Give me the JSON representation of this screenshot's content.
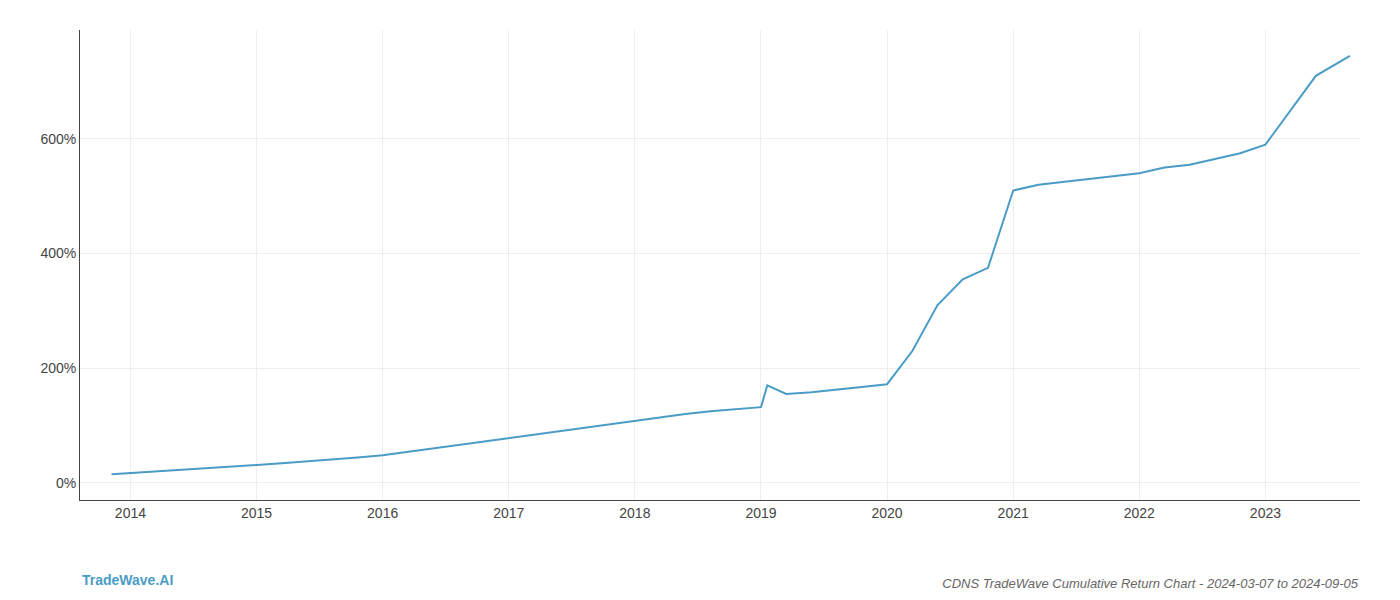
{
  "chart_data": {
    "type": "line",
    "title": "CDNS TradeWave Cumulative Return Chart - 2024-03-07 to 2024-09-05",
    "annotations": [
      "TradeWave.AI"
    ],
    "x": [
      2013.85,
      2014.0,
      2014.2,
      2014.4,
      2014.6,
      2014.8,
      2015.0,
      2015.2,
      2015.4,
      2015.6,
      2015.8,
      2016.0,
      2016.2,
      2016.4,
      2016.6,
      2016.8,
      2017.0,
      2017.2,
      2017.4,
      2017.6,
      2017.8,
      2018.0,
      2018.2,
      2018.4,
      2018.6,
      2018.8,
      2019.0,
      2019.05,
      2019.2,
      2019.4,
      2019.6,
      2019.8,
      2020.0,
      2020.2,
      2020.4,
      2020.6,
      2020.8,
      2021.0,
      2021.2,
      2021.4,
      2021.6,
      2021.8,
      2022.0,
      2022.2,
      2022.4,
      2022.6,
      2022.8,
      2023.0,
      2023.2,
      2023.4,
      2023.67
    ],
    "values": [
      15,
      17,
      19,
      22,
      25,
      28,
      31,
      34,
      37,
      40,
      44,
      48,
      54,
      60,
      66,
      72,
      78,
      85,
      90,
      96,
      102,
      108,
      115,
      120,
      125,
      128,
      132,
      170,
      155,
      158,
      162,
      167,
      172,
      230,
      310,
      355,
      375,
      510,
      520,
      525,
      530,
      535,
      540,
      550,
      555,
      565,
      575,
      590,
      650,
      710,
      745
    ],
    "color": "#4a9cc7",
    "xlim": [
      2013.6,
      2023.75
    ],
    "xticks": [
      2014,
      2015,
      2016,
      2017,
      2018,
      2019,
      2020,
      2021,
      2022,
      2023
    ],
    "ylim": [
      -30,
      790
    ],
    "yticks": [
      {
        "value": 0,
        "label": "0%"
      },
      {
        "value": 200,
        "label": "200%"
      },
      {
        "value": 400,
        "label": "400%"
      },
      {
        "value": 600,
        "label": "600%"
      }
    ],
    "grid": true
  }
}
